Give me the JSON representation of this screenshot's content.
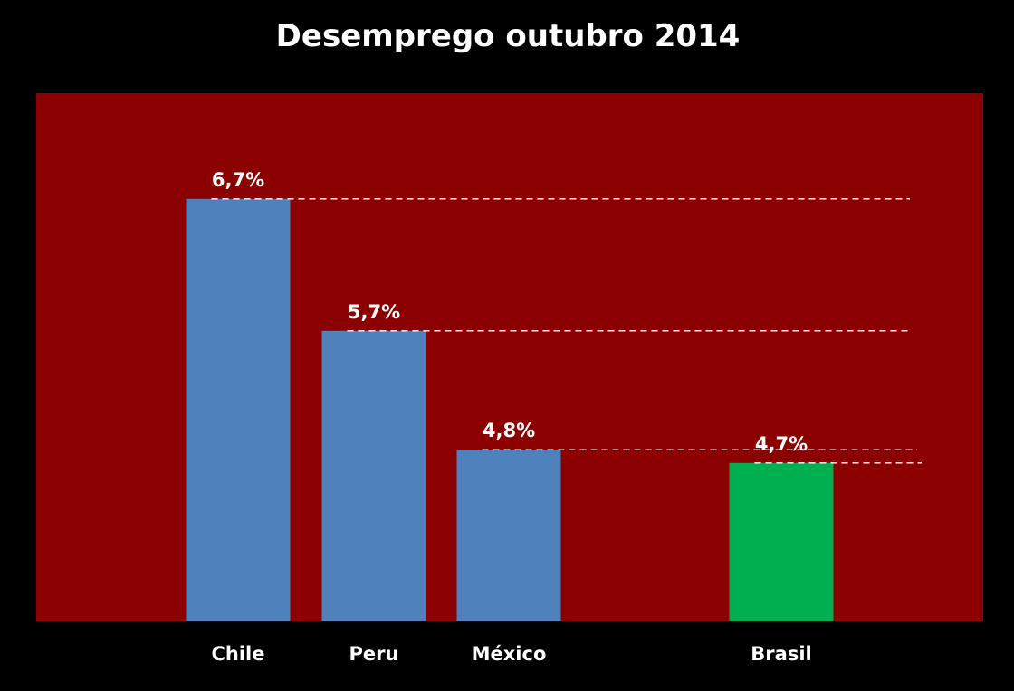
{
  "chart_data": {
    "type": "bar",
    "title": "Desemprego outubro 2014",
    "xlabel": "",
    "ylabel": "",
    "categories": [
      "Chile",
      "Peru",
      "México",
      "Brasil"
    ],
    "values": [
      6.7,
      5.7,
      4.8,
      4.7
    ],
    "data_labels": [
      "6,7%",
      "5,7%",
      "4,8%",
      "4,7%"
    ],
    "ylim": [
      3.5,
      7.5
    ],
    "grid": false,
    "legend": "none",
    "reference_lines": [
      6.7,
      5.7,
      4.8,
      4.7
    ],
    "colors": {
      "page_background": "#000000",
      "plot_background": "#8b0000",
      "bar_default": "#4f81bd",
      "bar_highlight": "#00b050",
      "text": "#ffffff"
    },
    "bar_colors": [
      "#4f81bd",
      "#4f81bd",
      "#4f81bd",
      "#00b050"
    ]
  }
}
